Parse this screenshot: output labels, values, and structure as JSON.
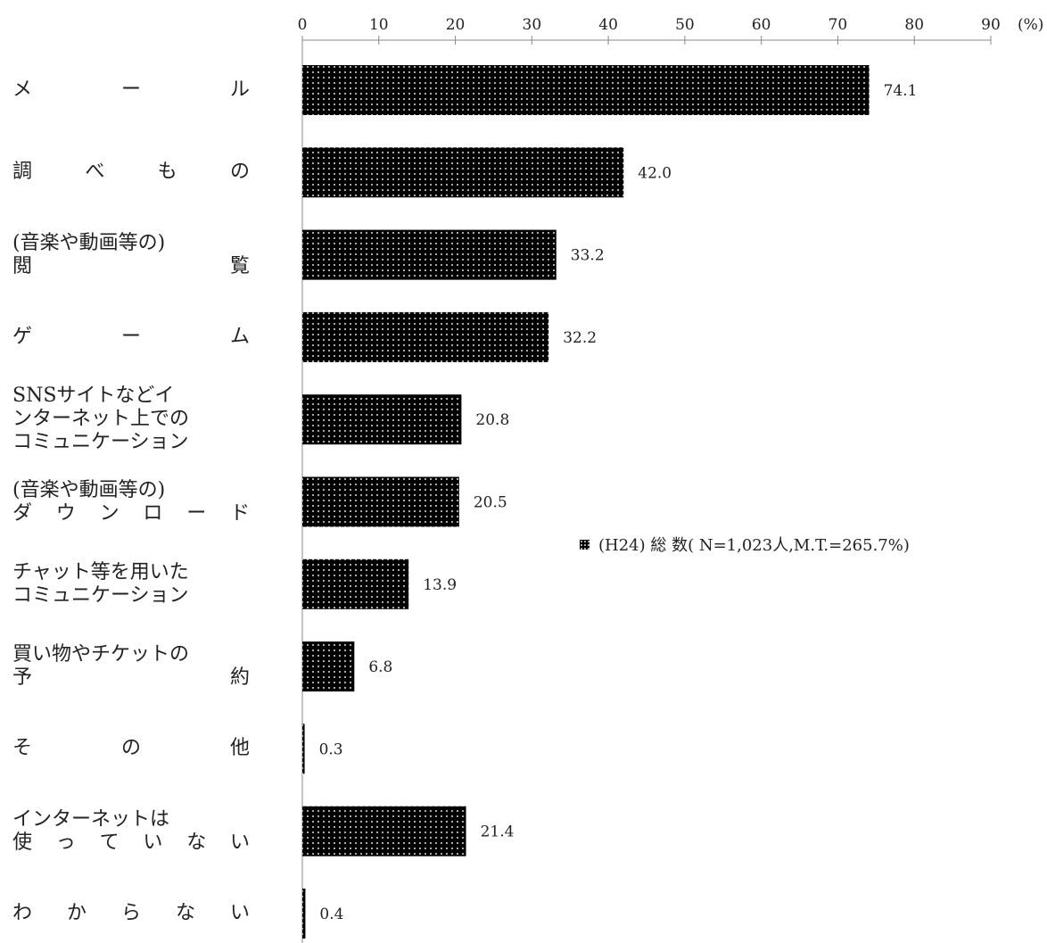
{
  "chart_data": {
    "type": "bar",
    "orientation": "horizontal",
    "categories": [
      [
        "メ ー ル"
      ],
      [
        "調 べ も の"
      ],
      [
        "(音楽や動画等の)",
        "閲 覧"
      ],
      [
        "ゲ ー ム"
      ],
      [
        "SNSサイトなどイ",
        "ンターネット上での",
        "コミュニケーション"
      ],
      [
        "(音楽や動画等の)",
        "ダ ウ ン ロ ー ド"
      ],
      [
        "チャット等を用いた",
        "コミュニケーション"
      ],
      [
        "買い物やチケットの",
        "予 約"
      ],
      [
        "そ の 他"
      ],
      [
        "インターネットは",
        "使 っ て い な い"
      ],
      [
        "わ か ら な い"
      ]
    ],
    "series": [
      {
        "name": "(H24) 総 数( N=1,023人,M.T.=265.7%)",
        "values": [
          74.1,
          42.0,
          33.2,
          32.2,
          20.8,
          20.5,
          13.9,
          6.8,
          0.3,
          21.4,
          0.4
        ],
        "value_labels": [
          "74.1",
          "42.0",
          "33.2",
          "32.2",
          "20.8",
          "20.5",
          "13.9",
          "6.8",
          "0.3",
          "21.4",
          "0.4"
        ]
      }
    ],
    "x_axis": {
      "min": 0,
      "max": 90,
      "ticks": [
        "0",
        "10",
        "20",
        "30",
        "40",
        "50",
        "60",
        "70",
        "80",
        "90"
      ],
      "unit_label": "(%)",
      "position": "top"
    },
    "grid": false,
    "legend_position": "right-middle",
    "colors": {
      "bar_fill": "#000000",
      "bar_dots": "#bbbbbb",
      "axis": "#888888"
    }
  }
}
